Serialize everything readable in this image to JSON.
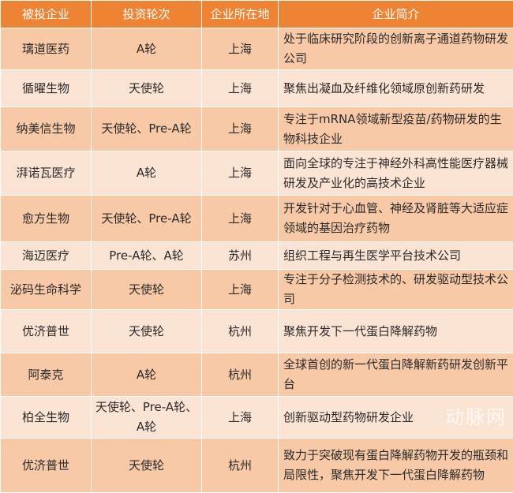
{
  "header": {
    "company": "被投企业",
    "round": "投资轮次",
    "location": "企业所在地",
    "intro": "企业简介"
  },
  "colors": {
    "header": "#ee8433",
    "row_odd": "#f8c9a6",
    "row_even": "#fce4d5"
  },
  "rows": [
    {
      "company": "璃道医药",
      "round": "A轮",
      "location": "上海",
      "intro": "处于临床研究阶段的创新离子通道药物研发公司"
    },
    {
      "company": "循曜生物",
      "round": "天使轮",
      "location": "上海",
      "intro": "聚焦出凝血及纤维化领域原创新药研发"
    },
    {
      "company": "纳美信生物",
      "round": "天使轮、Pre-A轮",
      "location": "上海",
      "intro": "专注于mRNA领域新型疫苗/药物研发的生物科技企业"
    },
    {
      "company": "湃诺瓦医疗",
      "round": "A轮",
      "location": "上海",
      "intro": "面向全球的专注于神经外科高性能医疗器械研发及产业化的高技术企业"
    },
    {
      "company": "愈方生物",
      "round": "天使轮、Pre-A轮",
      "location": "上海",
      "intro": "开发针对于心血管、神经及肾脏等大适应症领域的基因治疗药物"
    },
    {
      "company": "海迈医疗",
      "round": "Pre-A轮、A轮",
      "location": "苏州",
      "intro": "组织工程与再生医学平台技术公司"
    },
    {
      "company": "泌码生命科学",
      "round": "天使轮",
      "location": "上海",
      "intro": "专注于分子检测技术的、研发驱动型技术公司"
    },
    {
      "company": "优济普世",
      "round": "天使轮",
      "location": "杭州",
      "intro": "聚焦开发下一代蛋白降解药物"
    },
    {
      "company": "阿泰克",
      "round": "A轮",
      "location": "杭州",
      "intro": "全球首创的新一代蛋白降解新药研发创新平台"
    },
    {
      "company": "柏全生物",
      "round": "天使轮、Pre-A轮、A轮",
      "location": "上海",
      "intro": "创新驱动型药物研发企业"
    },
    {
      "company": "优济普世",
      "round": "天使轮",
      "location": "杭州",
      "intro": "致力于突破现有蛋白降解药物开发的瓶颈和局限性，聚焦开发下一代蛋白降解药物"
    }
  ],
  "watermark": "动脉网"
}
